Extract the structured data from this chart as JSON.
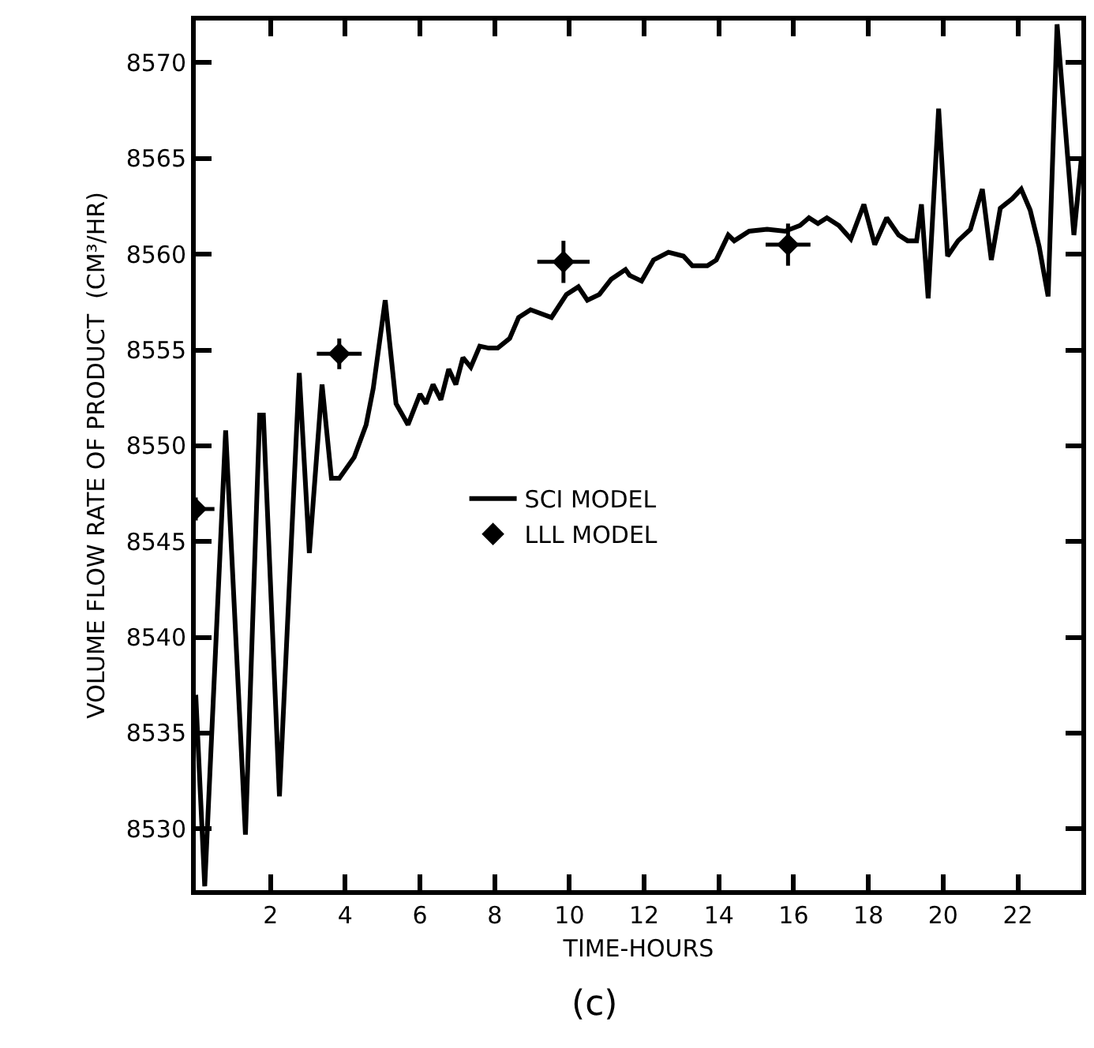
{
  "chart_data": {
    "type": "line",
    "xlabel": "TIME-HOURS",
    "ylabel": "VOLUME FLOW RATE OF PRODUCT  (CM³/HR)",
    "annotations": [
      "(c)"
    ],
    "xlim": [
      0,
      23.7
    ],
    "xticks": [
      2,
      4,
      6,
      8,
      10,
      12,
      14,
      16,
      18,
      20,
      22
    ],
    "ylim": [
      8526.8,
      8572.2
    ],
    "yticks": [
      8530,
      8535,
      8540,
      8545,
      8550,
      8555,
      8560,
      8565,
      8570
    ],
    "grid": false,
    "legend": "left",
    "series": [
      {
        "name": "SCI MODEL",
        "color": "#000000",
        "marker": "none",
        "line_style": "solid",
        "x": [
          0,
          0.24,
          0.8,
          1.33,
          1.71,
          1.81,
          2.24,
          2.77,
          3.04,
          3.38,
          3.63,
          3.84,
          4.24,
          4.56,
          4.75,
          5.07,
          5.36,
          5.68,
          6.0,
          6.16,
          6.35,
          6.56,
          6.77,
          6.96,
          7.15,
          7.36,
          7.6,
          7.84,
          8.08,
          8.4,
          8.64,
          8.96,
          9.52,
          9.92,
          10.24,
          10.48,
          10.8,
          11.12,
          11.5,
          11.61,
          11.93,
          12.25,
          12.65,
          13.05,
          13.29,
          13.69,
          13.93,
          14.25,
          14.41,
          14.81,
          15.29,
          15.77,
          16.17,
          16.41,
          16.65,
          16.89,
          17.21,
          17.53,
          17.88,
          18.17,
          18.49,
          18.81,
          19.05,
          19.29,
          19.42,
          19.6,
          19.88,
          20.12,
          20.4,
          20.73,
          21.05,
          21.29,
          21.53,
          21.85,
          22.09,
          22.33,
          22.57,
          22.81,
          23.05,
          23.5,
          23.7
        ],
        "values": [
          8537,
          8527,
          8550.8,
          8529.7,
          8551.6,
          8551.6,
          8531.7,
          8553.8,
          8544.4,
          8553.2,
          8548.3,
          8548.3,
          8549.4,
          8551.1,
          8553.0,
          8557.6,
          8552.2,
          8551.1,
          8552.7,
          8552.2,
          8553.2,
          8552.4,
          8554.0,
          8553.2,
          8554.6,
          8554.1,
          8555.2,
          8555.1,
          8555.1,
          8555.6,
          8556.7,
          8557.1,
          8556.7,
          8557.9,
          8558.3,
          8557.6,
          8557.9,
          8558.7,
          8559.2,
          8558.9,
          8558.6,
          8559.7,
          8560.1,
          8559.9,
          8559.4,
          8559.4,
          8559.7,
          8561.0,
          8560.7,
          8561.2,
          8561.3,
          8561.2,
          8561.5,
          8561.9,
          8561.6,
          8561.9,
          8561.5,
          8560.8,
          8562.6,
          8560.5,
          8561.9,
          8561.0,
          8560.7,
          8560.7,
          8562.6,
          8557.7,
          8567.6,
          8559.9,
          8560.7,
          8561.3,
          8563.4,
          8559.7,
          8562.4,
          8562.9,
          8563.4,
          8562.3,
          8560.4,
          8557.8,
          8572,
          8561,
          8565
        ]
      },
      {
        "name": "LLL MODEL",
        "type": "scatter",
        "color": "#000000",
        "marker": "diamond",
        "x": [
          0,
          3.84,
          9.84,
          15.85
        ],
        "values": [
          8546.7,
          8554.8,
          8559.6,
          8560.5
        ],
        "errors": [
          0.6,
          0.8,
          1.1,
          1.1
        ],
        "xerrors": [
          0.5,
          0.6,
          0.7,
          0.6
        ]
      }
    ]
  }
}
